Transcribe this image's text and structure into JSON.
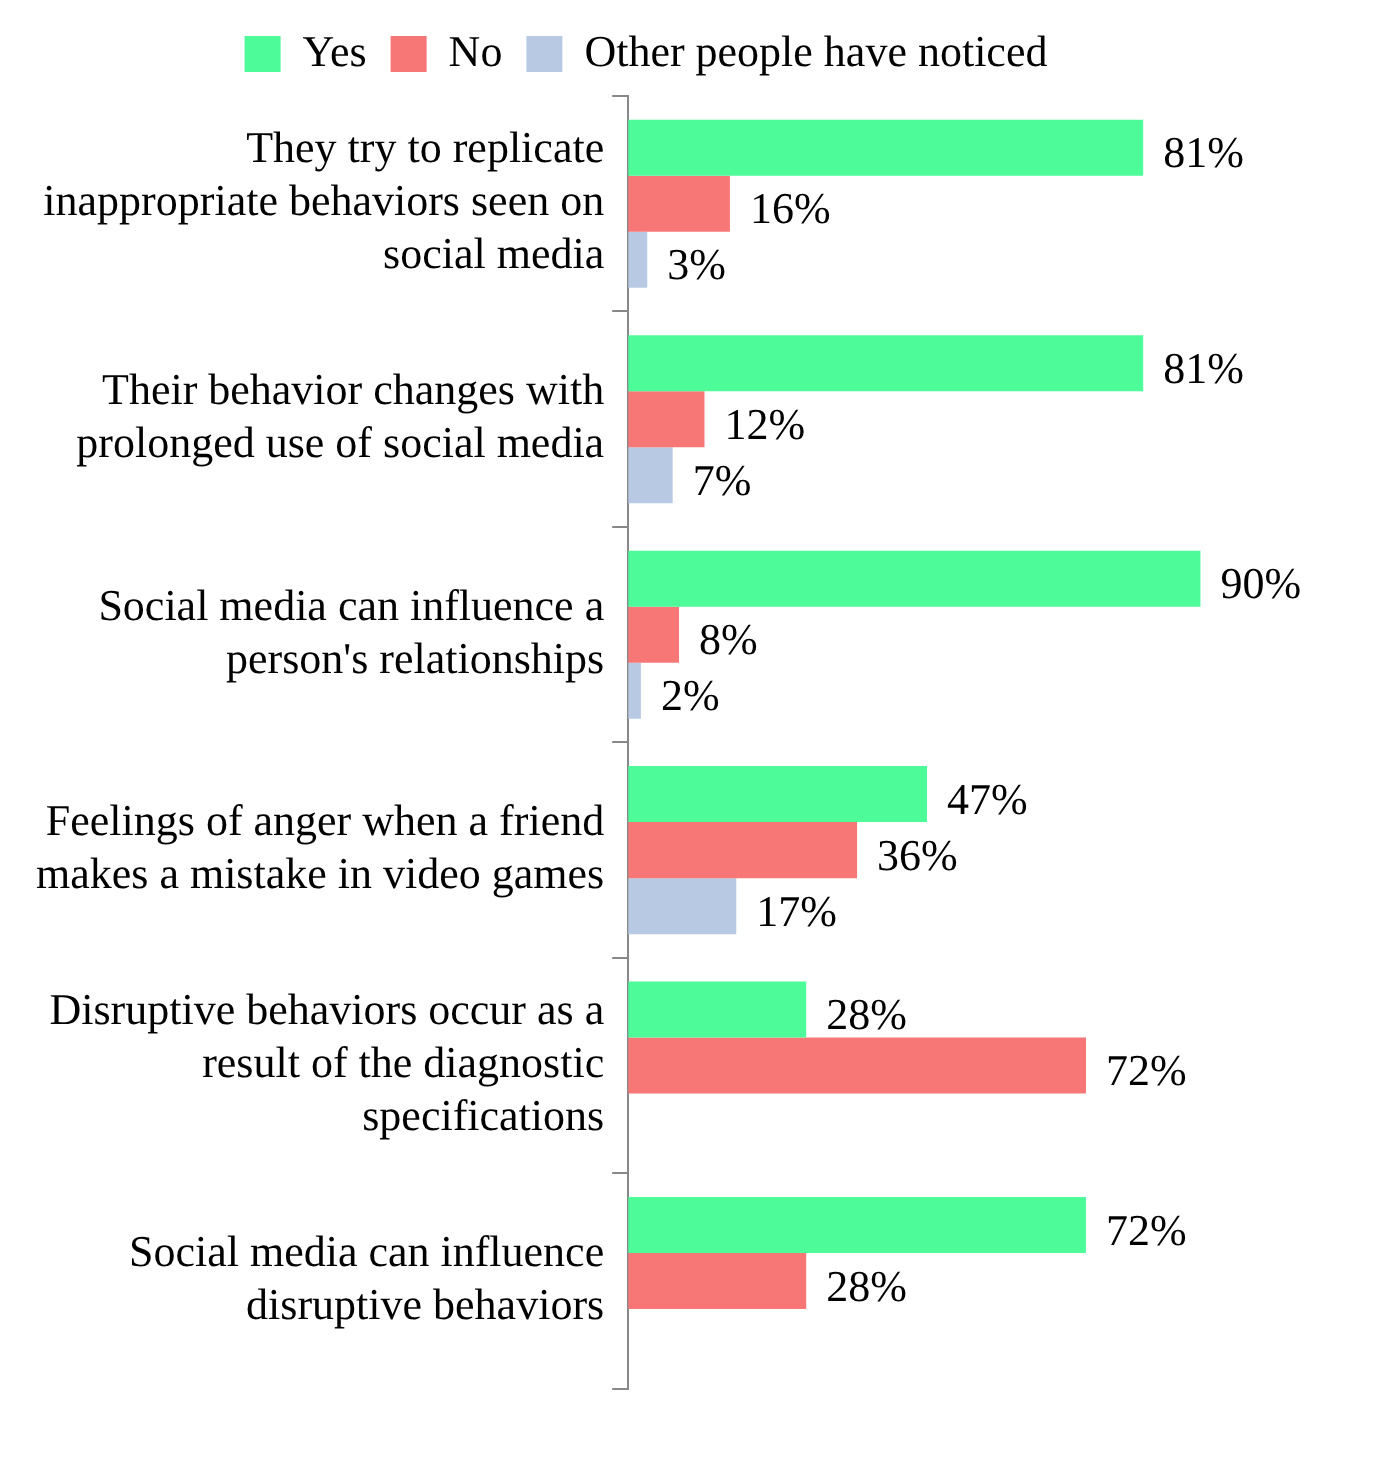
{
  "chart_data": {
    "type": "bar",
    "orientation": "horizontal",
    "legend": "top",
    "categories": [
      "They try to replicate inappropriate behaviors seen on social media",
      "Their behavior changes with prolonged use of social media",
      "Social media can influence a person's relationships",
      "Feelings of anger when a friend makes a mistake in video games",
      "Disruptive behaviors occur as a result of the diagnostic specifications",
      "Social media can influence disruptive behaviors"
    ],
    "series": [
      {
        "name": "Yes",
        "color": "#4dfb98",
        "values": [
          81,
          81,
          90,
          47,
          28,
          72
        ],
        "value_labels": [
          "81%",
          "81%",
          "90%",
          "47%",
          "28%",
          "72%"
        ]
      },
      {
        "name": "No",
        "color": "#f77676",
        "values": [
          16,
          12,
          8,
          36,
          72,
          28
        ],
        "value_labels": [
          "16%",
          "12%",
          "8%",
          "36%",
          "72%",
          "28%"
        ]
      },
      {
        "name": "Other people have noticed",
        "color": "#b8cae3",
        "values": [
          3,
          7,
          2,
          17,
          null,
          null
        ],
        "value_labels": [
          "3%",
          "7%",
          "2%",
          "17%",
          null,
          null
        ]
      }
    ]
  }
}
